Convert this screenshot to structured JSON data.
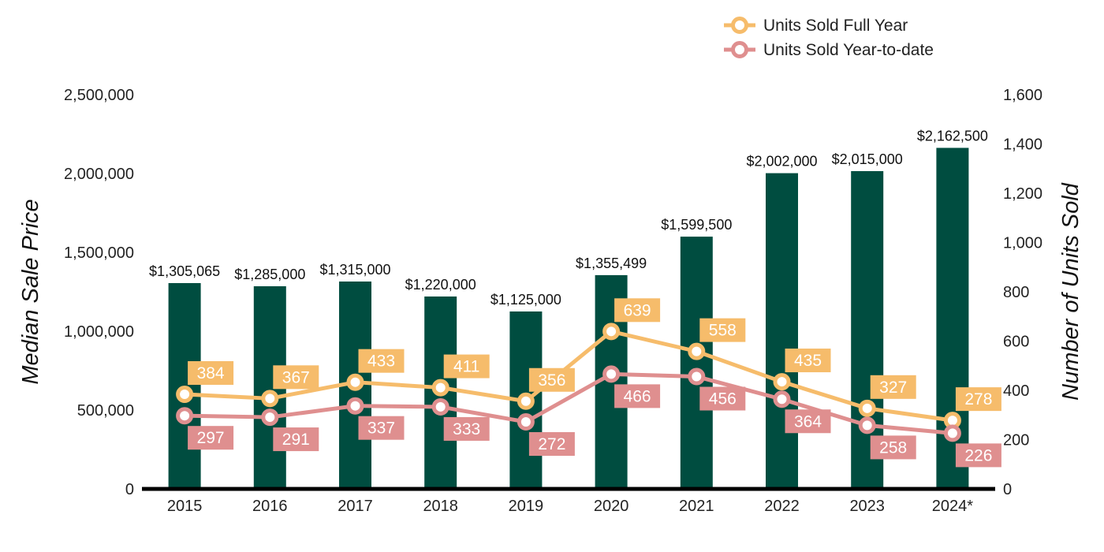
{
  "chart_data": {
    "type": "bar",
    "categories": [
      "2015",
      "2016",
      "2017",
      "2018",
      "2019",
      "2020",
      "2021",
      "2022",
      "2023",
      "2024*"
    ],
    "bar_series": {
      "values": [
        1305065,
        1285000,
        1315000,
        1220000,
        1125000,
        1355499,
        1599500,
        2002000,
        2015000,
        2162500
      ],
      "labels": [
        "$1,305,065",
        "$1,285,000",
        "$1,315,000",
        "$1,220,000",
        "$1,125,000",
        "$1,355,499",
        "$1,599,500",
        "$2,002,000",
        "$2,015,000",
        "$2,162,500"
      ],
      "color": "#004d40"
    },
    "line_series": [
      {
        "name": "Units Sold Full Year",
        "values": [
          384,
          367,
          433,
          411,
          356,
          639,
          558,
          435,
          327,
          278
        ],
        "labels": [
          "384",
          "367",
          "433",
          "411",
          "356",
          "639",
          "558",
          "435",
          "327",
          "278"
        ],
        "color": "#f6bc6b",
        "label_position": "above"
      },
      {
        "name": "Units Sold Year-to-date",
        "values": [
          297,
          291,
          337,
          333,
          272,
          466,
          456,
          364,
          258,
          226
        ],
        "labels": [
          "297",
          "291",
          "337",
          "333",
          "272",
          "466",
          "456",
          "364",
          "258",
          "226"
        ],
        "color": "#df8f8f",
        "label_position": "below"
      }
    ],
    "y_left": {
      "label": "Median Sale Price",
      "range": [
        0,
        2500000
      ],
      "ticks": [
        "0",
        "500,000",
        "1,000,000",
        "1,500,000",
        "2,000,000",
        "2,500,000"
      ]
    },
    "y_right": {
      "label": "Number of Units Sold",
      "range": [
        0,
        1600
      ],
      "ticks": [
        "0",
        "200",
        "400",
        "600",
        "800",
        "1,000",
        "1,200",
        "1,400",
        "1,600"
      ]
    },
    "legend": "top-right",
    "grid": false
  }
}
